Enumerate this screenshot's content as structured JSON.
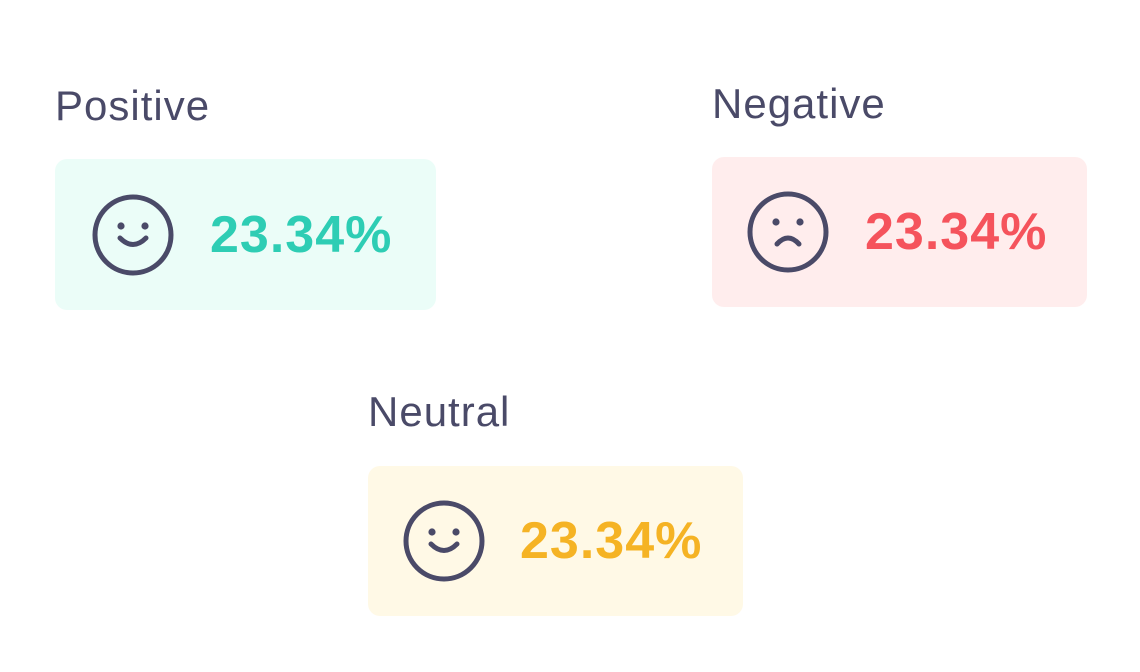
{
  "colors": {
    "label_text": "#4a4a68",
    "icon_stroke": "#4a4a68"
  },
  "sentiments": {
    "positive": {
      "label": "Positive",
      "value": "23.34%",
      "icon": "smile-icon",
      "accent": "#2ecdb4",
      "background": "#ebfdf8"
    },
    "negative": {
      "label": "Negative",
      "value": "23.34%",
      "icon": "frown-icon",
      "accent": "#f5535c",
      "background": "#ffeded"
    },
    "neutral": {
      "label": "Neutral",
      "value": "23.34%",
      "icon": "smile-icon",
      "accent": "#f5b324",
      "background": "#fff9e6"
    }
  }
}
